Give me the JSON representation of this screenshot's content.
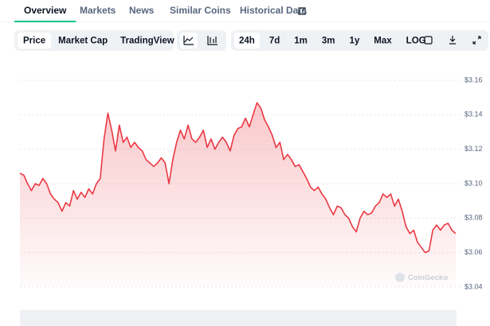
{
  "tabs": [
    "Overview",
    "Markets",
    "News",
    "Similar Coins",
    "Historical Data"
  ],
  "active_tab": "Overview",
  "chart_modes": [
    "Price",
    "Market Cap",
    "TradingView"
  ],
  "active_mode": "Price",
  "ranges": [
    "24h",
    "7d",
    "1m",
    "3m",
    "1y",
    "Max",
    "LOG"
  ],
  "active_range": "24h",
  "chart_data": {
    "type": "line",
    "color": "#ea3943",
    "watermark": "CoinGecko",
    "values": [
      3.106,
      3.105,
      3.1,
      3.096,
      3.1,
      3.099,
      3.103,
      3.1,
      3.094,
      3.091,
      3.089,
      3.084,
      3.089,
      3.087,
      3.096,
      3.091,
      3.095,
      3.092,
      3.097,
      3.094,
      3.1,
      3.103,
      3.126,
      3.141,
      3.131,
      3.119,
      3.134,
      3.124,
      3.127,
      3.121,
      3.124,
      3.121,
      3.119,
      3.114,
      3.112,
      3.11,
      3.112,
      3.115,
      3.112,
      3.1,
      3.114,
      3.124,
      3.131,
      3.126,
      3.134,
      3.126,
      3.124,
      3.127,
      3.131,
      3.121,
      3.126,
      3.12,
      3.124,
      3.127,
      3.124,
      3.119,
      3.128,
      3.132,
      3.133,
      3.138,
      3.133,
      3.14,
      3.147,
      3.144,
      3.137,
      3.133,
      3.128,
      3.121,
      3.124,
      3.114,
      3.117,
      3.114,
      3.11,
      3.111,
      3.107,
      3.103,
      3.098,
      3.096,
      3.098,
      3.094,
      3.091,
      3.086,
      3.082,
      3.087,
      3.086,
      3.082,
      3.08,
      3.075,
      3.072,
      3.08,
      3.084,
      3.082,
      3.083,
      3.087,
      3.089,
      3.094,
      3.092,
      3.094,
      3.087,
      3.091,
      3.084,
      3.075,
      3.071,
      3.073,
      3.066,
      3.063,
      3.06,
      3.061,
      3.073,
      3.076,
      3.073,
      3.076,
      3.077,
      3.073,
      3.071
    ],
    "ylim": [
      3.04,
      3.16
    ],
    "yticks": [
      {
        "value": 3.16,
        "label": "$3.16"
      },
      {
        "value": 3.14,
        "label": "$3.14"
      },
      {
        "value": 3.12,
        "label": "$3.12"
      },
      {
        "value": 3.1,
        "label": "$3.10"
      },
      {
        "value": 3.08,
        "label": "$3.08"
      },
      {
        "value": 3.06,
        "label": "$3.06"
      },
      {
        "value": 3.04,
        "label": "$3.04"
      }
    ],
    "grid": true
  }
}
